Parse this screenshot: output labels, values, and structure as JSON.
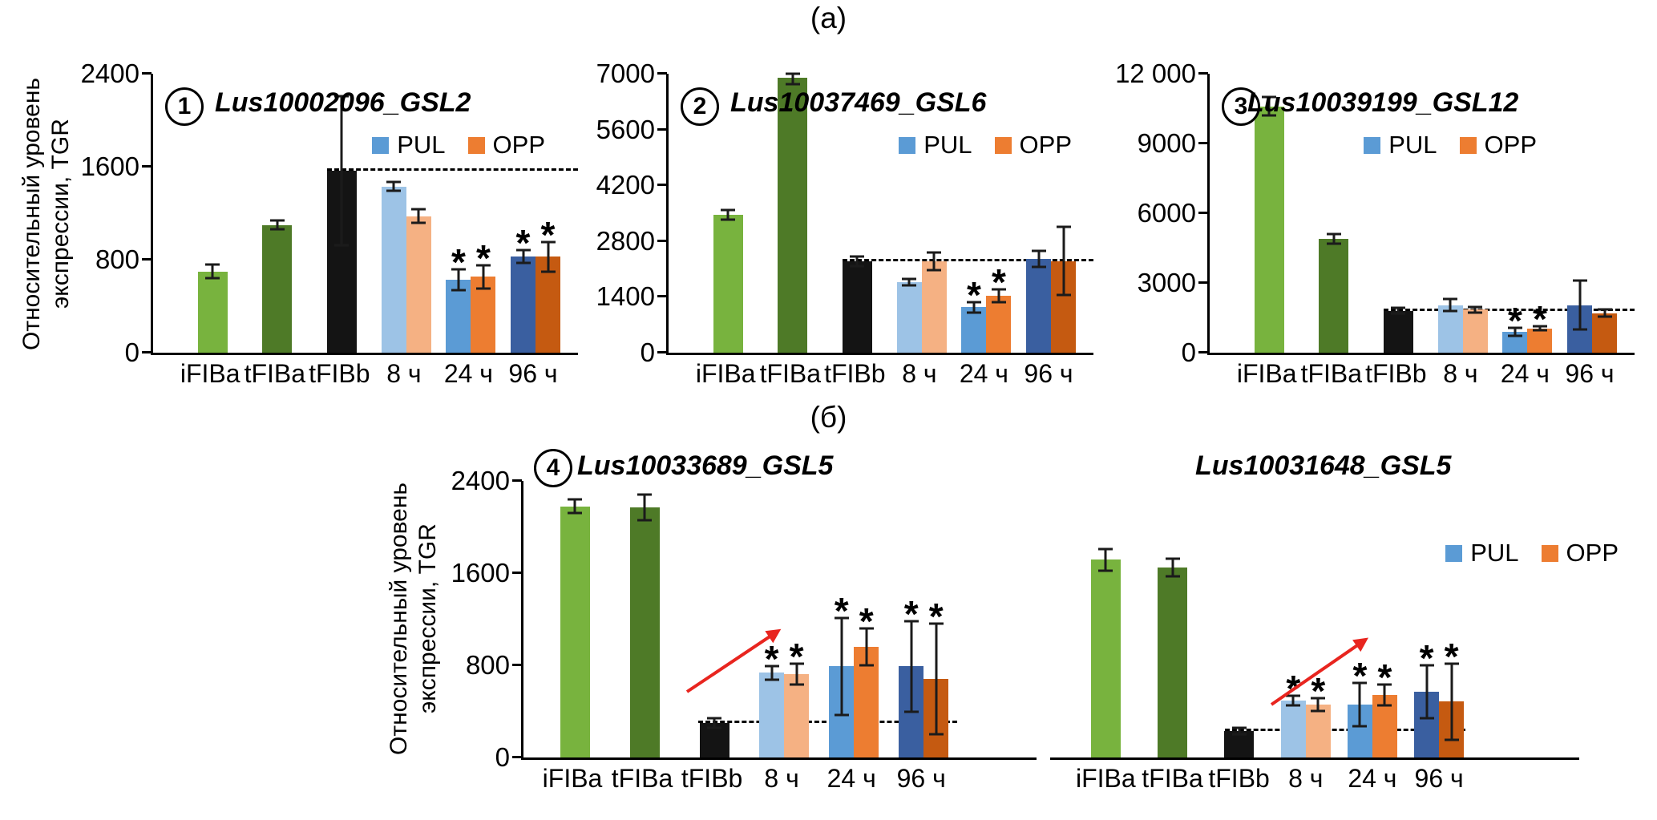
{
  "figure": {
    "panel_a_label": "(а)",
    "panel_b_label": "(б)",
    "y_axis_label": "Относительный уровень экспрессии, TGR"
  },
  "legend": {
    "items": [
      {
        "label": "PUL",
        "color_key": "blue_mid"
      },
      {
        "label": "OPP",
        "color_key": "orange_mid"
      }
    ]
  },
  "colors": {
    "green_light": "#78b33e",
    "green_dark": "#4e7a27",
    "black": "#141414",
    "blue_light": "#9dc3e6",
    "orange_light": "#f5b183",
    "blue_mid": "#5b9bd5",
    "orange_mid": "#ed7d31",
    "blue_dark": "#3a5fa0",
    "orange_dark": "#c55a11",
    "arrow_red": "#e8251f",
    "axis": "#000000"
  },
  "chart_data": [
    {
      "type": "bar",
      "panel": "а",
      "badge": "1",
      "title": "Lus10002096_GSL2",
      "ylim": [
        0,
        2400
      ],
      "yticks": [
        {
          "value": 0,
          "label": "0"
        },
        {
          "value": 800,
          "label": "800"
        },
        {
          "value": 1600,
          "label": "1600"
        },
        {
          "value": 2400,
          "label": "2400"
        }
      ],
      "dashed_line_y": 1565,
      "show_legend": true,
      "show_y_axis": true,
      "red_arrow": false,
      "categories": [
        "iFIBa",
        "tFIBa",
        "tFIBb",
        "8 ч",
        "24 ч",
        "96 ч"
      ],
      "groups": [
        {
          "label": "iFIBa",
          "bars": [
            {
              "series": "iFIBa",
              "value": 700,
              "err": 60,
              "color_key": "green_light",
              "star": false
            }
          ]
        },
        {
          "label": "tFIBa",
          "bars": [
            {
              "series": "tFIBa",
              "value": 1100,
              "err": 35,
              "color_key": "green_dark",
              "star": false
            }
          ]
        },
        {
          "label": "tFIBb",
          "bars": [
            {
              "series": "tFIBb",
              "value": 1565,
              "err": 640,
              "color_key": "black",
              "star": false
            }
          ]
        },
        {
          "label": "8 ч",
          "bars": [
            {
              "series": "PUL",
              "value": 1430,
              "err": 40,
              "color_key": "blue_light",
              "star": false
            },
            {
              "series": "OPP",
              "value": 1175,
              "err": 60,
              "color_key": "orange_light",
              "star": false
            }
          ]
        },
        {
          "label": "24 ч",
          "bars": [
            {
              "series": "PUL",
              "value": 625,
              "err": 90,
              "color_key": "blue_mid",
              "star": true
            },
            {
              "series": "OPP",
              "value": 655,
              "err": 100,
              "color_key": "orange_mid",
              "star": true
            }
          ]
        },
        {
          "label": "96 ч",
          "bars": [
            {
              "series": "PUL",
              "value": 825,
              "err": 55,
              "color_key": "blue_dark",
              "star": true
            },
            {
              "series": "OPP",
              "value": 825,
              "err": 130,
              "color_key": "orange_dark",
              "star": true
            }
          ]
        }
      ]
    },
    {
      "type": "bar",
      "panel": "а",
      "badge": "2",
      "title": "Lus10037469_GSL6",
      "ylim": [
        0,
        7000
      ],
      "yticks": [
        {
          "value": 0,
          "label": "0"
        },
        {
          "value": 1400,
          "label": "1400"
        },
        {
          "value": 2800,
          "label": "2800"
        },
        {
          "value": 4200,
          "label": "4200"
        },
        {
          "value": 5600,
          "label": "5600"
        },
        {
          "value": 7000,
          "label": "7000"
        }
      ],
      "dashed_line_y": 2300,
      "show_legend": true,
      "show_y_axis": true,
      "red_arrow": false,
      "categories": [
        "iFIBa",
        "tFIBa",
        "tFIBb",
        "8 ч",
        "24 ч",
        "96 ч"
      ],
      "groups": [
        {
          "label": "iFIBa",
          "bars": [
            {
              "series": "iFIBa",
              "value": 3460,
              "err": 120,
              "color_key": "green_light",
              "star": false
            }
          ]
        },
        {
          "label": "tFIBa",
          "bars": [
            {
              "series": "tFIBa",
              "value": 6900,
              "err": 170,
              "color_key": "green_dark",
              "star": false
            }
          ]
        },
        {
          "label": "tFIBb",
          "bars": [
            {
              "series": "tFIBb",
              "value": 2300,
              "err": 120,
              "color_key": "black",
              "star": false
            }
          ]
        },
        {
          "label": "8 ч",
          "bars": [
            {
              "series": "PUL",
              "value": 1770,
              "err": 90,
              "color_key": "blue_light",
              "star": false
            },
            {
              "series": "OPP",
              "value": 2300,
              "err": 220,
              "color_key": "orange_light",
              "star": false
            }
          ]
        },
        {
          "label": "24 ч",
          "bars": [
            {
              "series": "PUL",
              "value": 1140,
              "err": 130,
              "color_key": "blue_mid",
              "star": true
            },
            {
              "series": "OPP",
              "value": 1430,
              "err": 160,
              "color_key": "orange_mid",
              "star": true
            }
          ]
        },
        {
          "label": "96 ч",
          "bars": [
            {
              "series": "PUL",
              "value": 2350,
              "err": 200,
              "color_key": "blue_dark",
              "star": false
            },
            {
              "series": "OPP",
              "value": 2300,
              "err": 850,
              "color_key": "orange_dark",
              "star": false
            }
          ]
        }
      ]
    },
    {
      "type": "bar",
      "panel": "а",
      "badge": "3",
      "title": "Lus10039199_GSL12",
      "ylim": [
        0,
        12000
      ],
      "yticks": [
        {
          "value": 0,
          "label": "0"
        },
        {
          "value": 3000,
          "label": "3000"
        },
        {
          "value": 6000,
          "label": "6000"
        },
        {
          "value": 9000,
          "label": "9000"
        },
        {
          "value": 12000,
          "label": "12 000"
        }
      ],
      "dashed_line_y": 1810,
      "show_legend": true,
      "show_y_axis": true,
      "red_arrow": false,
      "categories": [
        "iFIBa",
        "tFIBa",
        "tFIBb",
        "8 ч",
        "24 ч",
        "96 ч"
      ],
      "groups": [
        {
          "label": "iFIBa",
          "bars": [
            {
              "series": "iFIBa",
              "value": 10600,
              "err": 400,
              "color_key": "green_light",
              "star": false
            }
          ]
        },
        {
          "label": "tFIBa",
          "bars": [
            {
              "series": "tFIBa",
              "value": 4900,
              "err": 200,
              "color_key": "green_dark",
              "star": false
            }
          ]
        },
        {
          "label": "tFIBb",
          "bars": [
            {
              "series": "tFIBb",
              "value": 1810,
              "err": 130,
              "color_key": "black",
              "star": false
            }
          ]
        },
        {
          "label": "8 ч",
          "bars": [
            {
              "series": "PUL",
              "value": 2050,
              "err": 260,
              "color_key": "blue_light",
              "star": false
            },
            {
              "series": "OPP",
              "value": 1850,
              "err": 130,
              "color_key": "orange_light",
              "star": false
            }
          ]
        },
        {
          "label": "24 ч",
          "bars": [
            {
              "series": "PUL",
              "value": 900,
              "err": 180,
              "color_key": "blue_mid",
              "star": true
            },
            {
              "series": "OPP",
              "value": 1050,
              "err": 100,
              "color_key": "orange_mid",
              "star": true
            }
          ]
        },
        {
          "label": "96 ч",
          "bars": [
            {
              "series": "PUL",
              "value": 2050,
              "err": 1050,
              "color_key": "blue_dark",
              "star": false
            },
            {
              "series": "OPP",
              "value": 1700,
              "err": 150,
              "color_key": "orange_dark",
              "star": false
            }
          ]
        }
      ]
    },
    {
      "type": "bar",
      "panel": "б",
      "badge": "4",
      "title": "Lus10033689_GSL5",
      "ylim": [
        0,
        2400
      ],
      "yticks": [
        {
          "value": 0,
          "label": "0"
        },
        {
          "value": 800,
          "label": "800"
        },
        {
          "value": 1600,
          "label": "1600"
        },
        {
          "value": 2400,
          "label": "2400"
        }
      ],
      "dashed_line_y": 300,
      "show_legend": false,
      "show_y_axis": true,
      "red_arrow": true,
      "categories": [
        "iFIBa",
        "tFIBa",
        "tFIBb",
        "8 ч",
        "24 ч",
        "96 ч"
      ],
      "groups": [
        {
          "label": "iFIBa",
          "bars": [
            {
              "series": "iFIBa",
              "value": 2180,
              "err": 60,
              "color_key": "green_light",
              "star": false
            }
          ]
        },
        {
          "label": "tFIBa",
          "bars": [
            {
              "series": "tFIBa",
              "value": 2170,
              "err": 110,
              "color_key": "green_dark",
              "star": false
            }
          ]
        },
        {
          "label": "tFIBb",
          "bars": [
            {
              "series": "tFIBb",
              "value": 300,
              "err": 40,
              "color_key": "black",
              "star": false
            }
          ]
        },
        {
          "label": "8 ч",
          "bars": [
            {
              "series": "PUL",
              "value": 735,
              "err": 60,
              "color_key": "blue_light",
              "star": true
            },
            {
              "series": "OPP",
              "value": 725,
              "err": 90,
              "color_key": "orange_light",
              "star": true
            }
          ]
        },
        {
          "label": "24 ч",
          "bars": [
            {
              "series": "PUL",
              "value": 790,
              "err": 420,
              "color_key": "blue_mid",
              "star": true
            },
            {
              "series": "OPP",
              "value": 960,
              "err": 160,
              "color_key": "orange_mid",
              "star": true
            }
          ]
        },
        {
          "label": "96 ч",
          "bars": [
            {
              "series": "PUL",
              "value": 790,
              "err": 395,
              "color_key": "blue_dark",
              "star": true
            },
            {
              "series": "OPP",
              "value": 680,
              "err": 480,
              "color_key": "orange_dark",
              "star": true
            }
          ]
        }
      ]
    },
    {
      "type": "bar",
      "panel": "б",
      "badge": null,
      "title": "Lus10031648_GSL5",
      "ylim": [
        0,
        2400
      ],
      "yticks": [
        {
          "value": 0,
          "label": "0"
        },
        {
          "value": 800,
          "label": "800"
        },
        {
          "value": 1600,
          "label": "1600"
        },
        {
          "value": 2400,
          "label": "2400"
        }
      ],
      "dashed_line_y": 230,
      "show_legend": true,
      "show_y_axis": false,
      "red_arrow": true,
      "categories": [
        "iFIBa",
        "tFIBa",
        "tFIBb",
        "8 ч",
        "24 ч",
        "96 ч"
      ],
      "groups": [
        {
          "label": "iFIBa",
          "bars": [
            {
              "series": "iFIBa",
              "value": 1715,
              "err": 95,
              "color_key": "green_light",
              "star": false
            }
          ]
        },
        {
          "label": "tFIBa",
          "bars": [
            {
              "series": "tFIBa",
              "value": 1650,
              "err": 75,
              "color_key": "green_dark",
              "star": false
            }
          ]
        },
        {
          "label": "tFIBb",
          "bars": [
            {
              "series": "tFIBb",
              "value": 230,
              "err": 30,
              "color_key": "black",
              "star": false
            }
          ]
        },
        {
          "label": "8 ч",
          "bars": [
            {
              "series": "PUL",
              "value": 495,
              "err": 40,
              "color_key": "blue_light",
              "star": true
            },
            {
              "series": "OPP",
              "value": 460,
              "err": 55,
              "color_key": "orange_light",
              "star": true
            }
          ]
        },
        {
          "label": "24 ч",
          "bars": [
            {
              "series": "PUL",
              "value": 460,
              "err": 190,
              "color_key": "blue_mid",
              "star": true
            },
            {
              "series": "OPP",
              "value": 540,
              "err": 90,
              "color_key": "orange_mid",
              "star": true
            }
          ]
        },
        {
          "label": "96 ч",
          "bars": [
            {
              "series": "PUL",
              "value": 570,
              "err": 230,
              "color_key": "blue_dark",
              "star": true
            },
            {
              "series": "OPP",
              "value": 485,
              "err": 330,
              "color_key": "orange_dark",
              "star": true
            }
          ]
        }
      ]
    }
  ]
}
